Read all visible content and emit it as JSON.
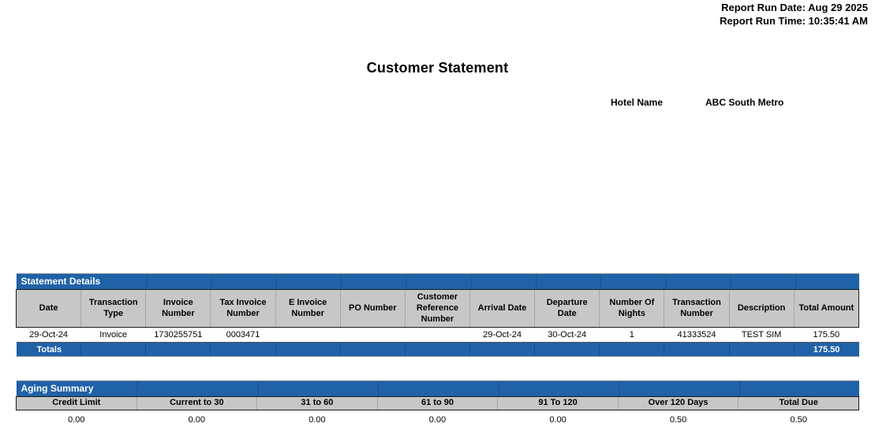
{
  "report_header": {
    "run_date": "Report Run Date: Aug 29 2025",
    "run_time": "Report Run Time: 10:35:41 AM"
  },
  "title": "Customer Statement",
  "hotel": {
    "label": "Hotel Name",
    "name": "ABC South Metro"
  },
  "statement_details": {
    "section_title": "Statement Details",
    "columns": [
      "Date",
      "Transaction Type",
      "Invoice Number",
      "Tax Invoice Number",
      "E Invoice Number",
      "PO Number",
      "Customer Reference Number",
      "Arrival Date",
      "Departure Date",
      "Number Of Nights",
      "Transaction Number",
      "Description",
      "Total Amount"
    ],
    "rows": [
      {
        "date": "29-Oct-24",
        "transaction_type": "Invoice",
        "invoice_number": "1730255751",
        "tax_invoice_number": "0003471",
        "e_invoice_number": "",
        "po_number": "",
        "customer_reference_number": "",
        "arrival_date": "29-Oct-24",
        "departure_date": "30-Oct-24",
        "number_of_nights": "1",
        "transaction_number": "41333524",
        "description": "TEST SIM",
        "total_amount": "175.50"
      }
    ],
    "totals": {
      "label": "Totals",
      "total_amount": "175.50"
    }
  },
  "aging_summary": {
    "section_title": "Aging Summary",
    "columns": [
      "Credit Limit",
      "Current to 30",
      "31 to 60",
      "61 to 90",
      "91 To 120",
      "Over 120 Days",
      "Total Due"
    ],
    "values": [
      "0.00",
      "0.00",
      "0.00",
      "0.00",
      "0.00",
      "0.50",
      "0.50"
    ]
  },
  "colors": {
    "section_bar_blue": "#2062A8",
    "column_header_gray": "#C7C7C7",
    "bar_text_white": "#FFFFFF"
  }
}
